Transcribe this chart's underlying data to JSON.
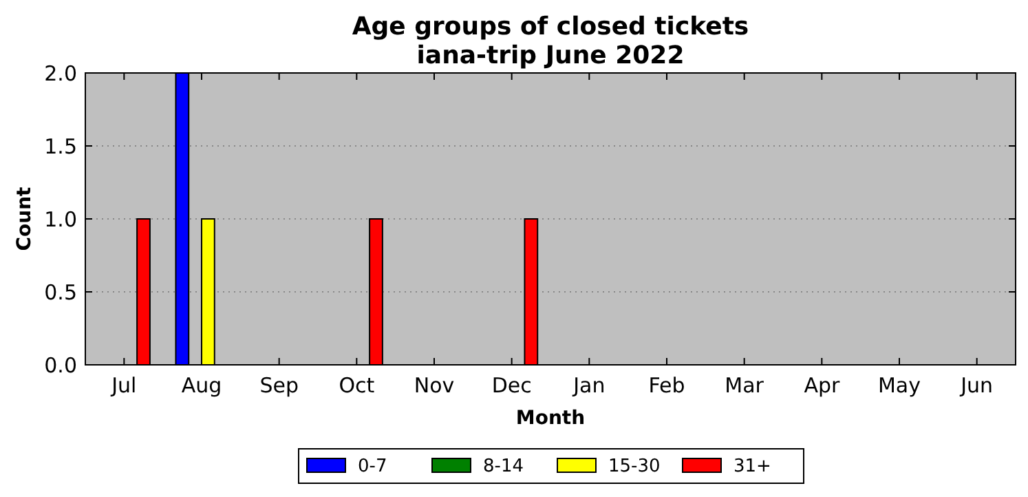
{
  "chart_data": {
    "type": "bar",
    "title": "Age groups of closed tickets\niana-trip June 2022",
    "xlabel": "Month",
    "ylabel": "Count",
    "categories": [
      "Jul",
      "Aug",
      "Sep",
      "Oct",
      "Nov",
      "Dec",
      "Jan",
      "Feb",
      "Mar",
      "Apr",
      "May",
      "Jun"
    ],
    "series": [
      {
        "name": "0-7",
        "color": "#0000ff",
        "values": [
          0,
          2,
          0,
          0,
          0,
          0,
          0,
          0,
          0,
          0,
          0,
          0
        ]
      },
      {
        "name": "8-14",
        "color": "#008000",
        "values": [
          0,
          0,
          0,
          0,
          0,
          0,
          0,
          0,
          0,
          0,
          0,
          0
        ]
      },
      {
        "name": "15-30",
        "color": "#ffff00",
        "values": [
          0,
          1,
          0,
          0,
          0,
          0,
          0,
          0,
          0,
          0,
          0,
          0
        ]
      },
      {
        "name": "31+",
        "color": "#ff0000",
        "values": [
          1,
          0,
          0,
          1,
          0,
          1,
          0,
          0,
          0,
          0,
          0,
          0
        ]
      }
    ],
    "ylim": [
      0,
      2
    ],
    "yticks": [
      {
        "value": 0,
        "label": "0.0"
      },
      {
        "value": 0.5,
        "label": "0.5"
      },
      {
        "value": 1,
        "label": "1.0"
      },
      {
        "value": 1.5,
        "label": "1.5"
      },
      {
        "value": 2,
        "label": "2.0"
      }
    ],
    "grid": "y",
    "legend": "bottom"
  }
}
